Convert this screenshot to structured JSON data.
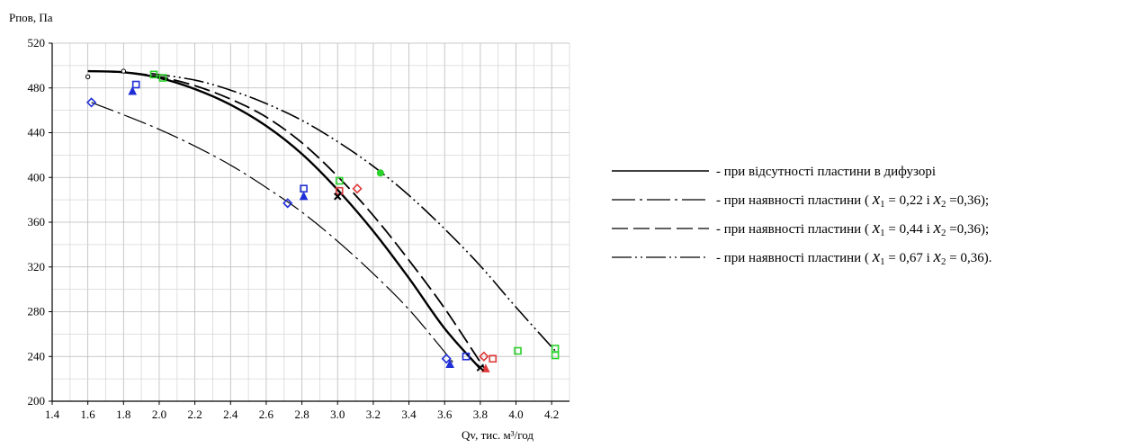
{
  "chart_data": {
    "type": "line",
    "title": "",
    "ylabel": "Рпов, Па",
    "xlabel": "Qv, тис. м³/год",
    "xlim": [
      1.4,
      4.3
    ],
    "ylim": [
      200,
      520
    ],
    "xticks": [
      "1.4",
      "1.6",
      "1.8",
      "2.0",
      "2.2",
      "2.4",
      "2.6",
      "2.8",
      "3.0",
      "3.2",
      "3.4",
      "3.6",
      "3.8",
      "4.0",
      "4.2"
    ],
    "yticks": [
      "200",
      "240",
      "280",
      "320",
      "360",
      "400",
      "440",
      "480",
      "520"
    ],
    "grid": true,
    "series": [
      {
        "name": "- при відсутності пластини в дифузорі",
        "style": "solid",
        "color": "#000000",
        "x": [
          1.6,
          1.8,
          2.0,
          2.2,
          2.4,
          2.6,
          2.8,
          3.0,
          3.2,
          3.4,
          3.6,
          3.8
        ],
        "y": [
          495,
          494,
          489,
          479,
          465,
          446,
          421,
          389,
          352,
          310,
          265,
          229
        ]
      },
      {
        "name": "- при наявності пластини ( x1 = 0,22 і x2 =0,36);",
        "legend_parts": [
          "- при наявності  пластини ( ",
          " = 0,22 і  ",
          " =0,36);"
        ],
        "style": "dash-dot",
        "color": "#000000",
        "x": [
          1.62,
          1.8,
          2.0,
          2.2,
          2.4,
          2.6,
          2.8,
          3.0,
          3.2,
          3.4,
          3.6,
          3.65
        ],
        "y": [
          467,
          456,
          443,
          428,
          411,
          391,
          369,
          343,
          314,
          282,
          244,
          234
        ]
      },
      {
        "name": "- при наявності пластини ( x1 = 0,44 і x2 =0,36);",
        "legend_parts": [
          "- при наявності пластини ( ",
          " = 0,44 і  ",
          " =0,36);"
        ],
        "style": "long-dash",
        "color": "#000000",
        "x": [
          1.6,
          1.8,
          2.0,
          2.2,
          2.4,
          2.6,
          2.8,
          3.0,
          3.2,
          3.4,
          3.6,
          3.82
        ],
        "y": [
          495,
          494,
          490,
          482,
          470,
          454,
          431,
          401,
          366,
          326,
          283,
          230
        ]
      },
      {
        "name": "- при наявності пластини ( x1 = 0,67 і x2 = 0,36).",
        "legend_parts": [
          "- при наявності пластини ( ",
          " = 0,67 і  ",
          " = 0,36)."
        ],
        "style": "dash-dot-dot",
        "color": "#000000",
        "x": [
          1.95,
          2.2,
          2.4,
          2.6,
          2.8,
          3.0,
          3.2,
          3.4,
          3.6,
          3.8,
          4.0,
          4.22
        ],
        "y": [
          493,
          487,
          478,
          466,
          451,
          432,
          410,
          384,
          354,
          321,
          284,
          245
        ]
      }
    ],
    "markers": [
      {
        "shape": "diamond",
        "color": "#1f2fd6",
        "x": 1.62,
        "y": 467
      },
      {
        "shape": "diamond",
        "color": "#1f2fd6",
        "x": 2.72,
        "y": 377
      },
      {
        "shape": "diamond",
        "color": "#1f2fd6",
        "x": 3.61,
        "y": 238
      },
      {
        "shape": "square",
        "color": "#1f2fd6",
        "x": 1.87,
        "y": 483
      },
      {
        "shape": "square",
        "color": "#1f2fd6",
        "x": 2.81,
        "y": 390
      },
      {
        "shape": "square",
        "color": "#1f2fd6",
        "x": 3.72,
        "y": 240
      },
      {
        "shape": "triangle",
        "color": "#1f2fd6",
        "x": 1.85,
        "y": 477
      },
      {
        "shape": "triangle",
        "color": "#1f2fd6",
        "x": 2.81,
        "y": 383
      },
      {
        "shape": "triangle",
        "color": "#1f2fd6",
        "x": 3.63,
        "y": 233
      },
      {
        "shape": "square",
        "color": "#2bd12b",
        "x": 1.97,
        "y": 492
      },
      {
        "shape": "square",
        "color": "#2bd12b",
        "x": 2.02,
        "y": 489
      },
      {
        "shape": "square",
        "color": "#2bd12b",
        "x": 3.01,
        "y": 397
      },
      {
        "shape": "circle",
        "color": "#2bd12b",
        "x": 3.24,
        "y": 404
      },
      {
        "shape": "square",
        "color": "#2bd12b",
        "x": 4.01,
        "y": 245
      },
      {
        "shape": "square",
        "color": "#2bd12b",
        "x": 4.22,
        "y": 247
      },
      {
        "shape": "square",
        "color": "#2bd12b",
        "x": 4.22,
        "y": 241
      },
      {
        "shape": "square",
        "color": "#e03a3a",
        "x": 3.01,
        "y": 388
      },
      {
        "shape": "diamond",
        "color": "#e03a3a",
        "x": 3.11,
        "y": 390
      },
      {
        "shape": "diamond",
        "color": "#e03a3a",
        "x": 3.82,
        "y": 240
      },
      {
        "shape": "triangle",
        "color": "#e03a3a",
        "x": 3.83,
        "y": 229
      },
      {
        "shape": "square",
        "color": "#e03a3a",
        "x": 3.87,
        "y": 238
      },
      {
        "shape": "cross",
        "color": "#000000",
        "x": 3.0,
        "y": 383
      },
      {
        "shape": "cross",
        "color": "#000000",
        "x": 3.8,
        "y": 230
      },
      {
        "shape": "circle-open",
        "color": "#000000",
        "x": 1.6,
        "y": 490
      },
      {
        "shape": "circle-open",
        "color": "#000000",
        "x": 1.8,
        "y": 495
      }
    ],
    "legend_placement": "right",
    "legend_var1": "x",
    "legend_sub1": "1",
    "legend_var2": "x",
    "legend_sub2": "2"
  }
}
